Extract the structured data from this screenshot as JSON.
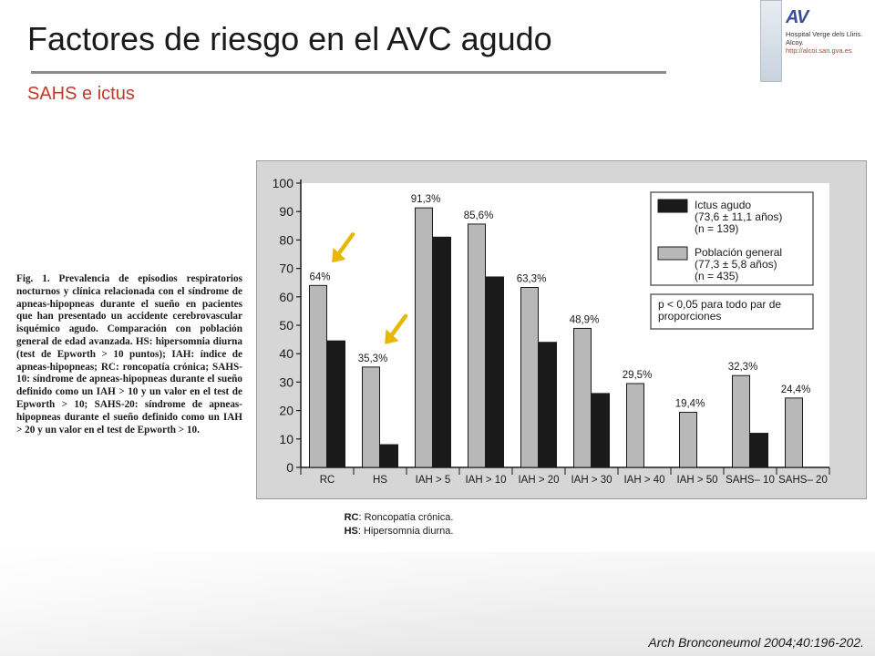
{
  "header": {
    "title": "Factores de riesgo en el AVC agudo",
    "subtitle": "SAHS e ictus"
  },
  "logo": {
    "brand": "AV",
    "hospital_line1": "Hospital Verge dels Lliris.",
    "hospital_line2": "Alcoy.",
    "url": "http://alcoi.san.gva.es"
  },
  "caption": {
    "text": "Fig. 1. Prevalencia de episodios respiratorios nocturnos y clínica relacionada con el síndrome de apneas-hipopneas durante el sueño en pacientes que han presentado un accidente cerebrovascular isquémico agudo. Comparación con población general de edad avanzada. HS: hipersomnia diurna (test de Epworth > 10 puntos); IAH: índice de apneas-hipopneas; RC: roncopatía crónica; SAHS-10: síndrome de apneas-hipopneas durante el sueño definido como un IAH > 10 y un valor en el test de Epworth > 10; SAHS-20: síndrome de apneas-hipopneas durante el sueño definido como un IAH > 20 y un valor en el test de Epworth > 10."
  },
  "footnotes": {
    "rc_abbr": "RC",
    "rc_text": ": Roncopatía crónica.",
    "hs_abbr": "HS",
    "hs_text": ": Hipersomnia diurna."
  },
  "citation": "Arch Bronconeumol 2004;40:196-202.",
  "colors": {
    "ictus": "#1a1a1a",
    "poblacion": "#b8b8b8",
    "arrow": "#e8b800",
    "accent": "#c0392b"
  },
  "chart_data": {
    "type": "bar",
    "categories": [
      "RC",
      "HS",
      "IAH > 5",
      "IAH > 10",
      "IAH > 20",
      "IAH > 30",
      "IAH > 40",
      "IAH > 50",
      "SAHS– 10",
      "SAHS– 20"
    ],
    "series": [
      {
        "name": "Población general (77,3 ± 5,8 años) (n = 435)",
        "values": [
          64,
          35.3,
          91.3,
          85.6,
          63.3,
          48.9,
          29.5,
          19.4,
          32.3,
          24.4
        ],
        "labels": [
          "64%",
          "35,3%",
          "91,3%",
          "85,6%",
          "63,3%",
          "48,9%",
          "29,5%",
          "19,4%",
          "32,3%",
          "24,4%"
        ]
      },
      {
        "name": "Ictus agudo (73,6 ± 11,1 años) (n = 139)",
        "values": [
          44.5,
          8,
          81,
          67,
          44,
          26,
          0,
          0,
          12,
          0
        ]
      }
    ],
    "legend": {
      "ictus": [
        "Ictus agudo",
        "(73,6 ± 11,1 años)",
        "(n = 139)"
      ],
      "poblacion": [
        "Población general",
        "(77,3 ± 5,8 años)",
        "(n = 435)"
      ],
      "note": [
        "p < 0,05 para todo par de",
        "proporciones"
      ],
      "placement": "top-right"
    },
    "y_ticks": [
      "0",
      "10",
      "20",
      "30",
      "40",
      "50",
      "60",
      "70",
      "80",
      "90",
      "100"
    ],
    "ylim": [
      0,
      100
    ],
    "grid": false,
    "highlight_arrows_on": [
      "RC",
      "HS"
    ]
  }
}
